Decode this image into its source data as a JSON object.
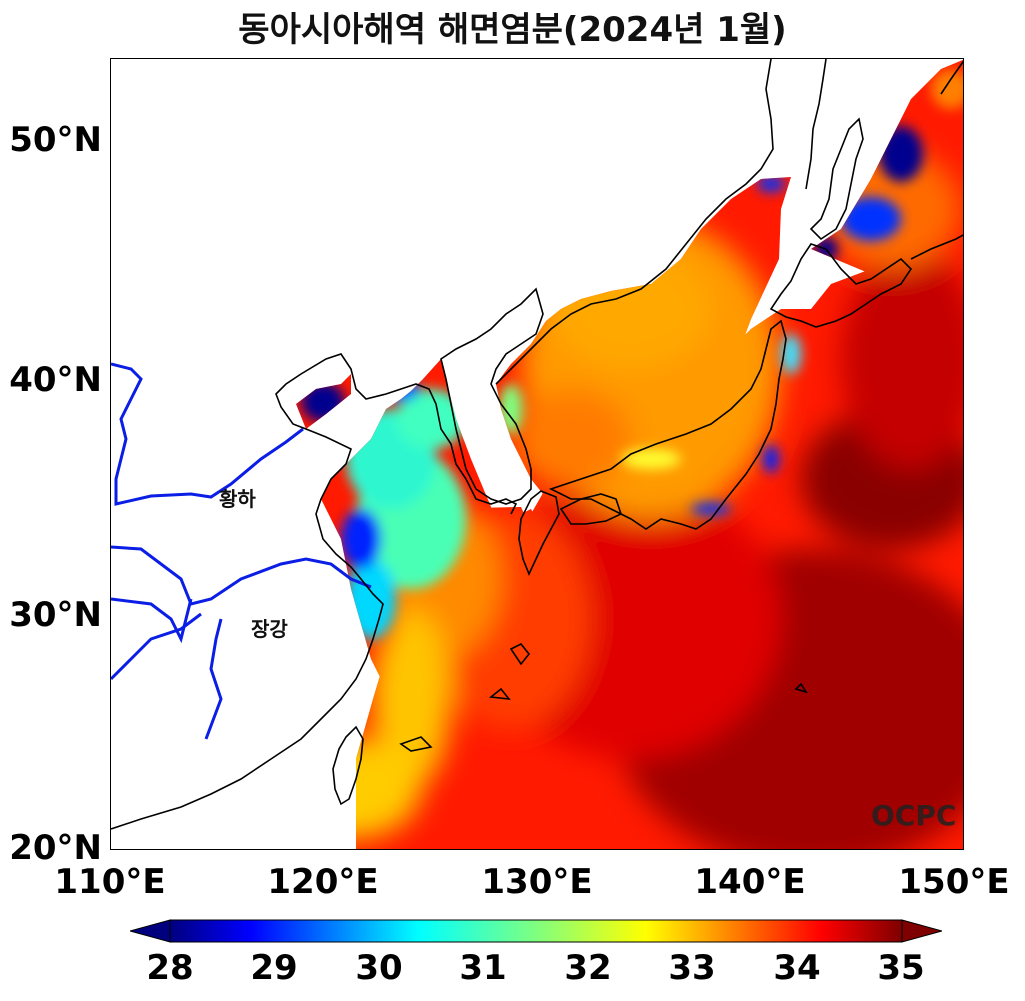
{
  "title": "동아시아해역 해면염분(2024년 1월)",
  "y_ticks": [
    {
      "label": "50°N",
      "lat": 50
    },
    {
      "label": "40°N",
      "lat": 40
    },
    {
      "label": "30°N",
      "lat": 30
    },
    {
      "label": "20°N",
      "lat": 20
    }
  ],
  "x_ticks": [
    {
      "label": "110°E",
      "lon": 110
    },
    {
      "label": "120°E",
      "lon": 120
    },
    {
      "label": "130°E",
      "lon": 130
    },
    {
      "label": "140°E",
      "lon": 140
    },
    {
      "label": "150°E",
      "lon": 150
    }
  ],
  "map": {
    "lon_range": [
      110,
      150
    ],
    "lat_range": [
      20,
      53.5
    ],
    "labels": [
      {
        "text": "황하",
        "lon": 115.0,
        "lat": 34.9
      },
      {
        "text": "장강",
        "lon": 116.5,
        "lat": 29.3
      }
    ],
    "watermark": "OCPC",
    "colors": {
      "river": "#0a1ee6",
      "coast": "#000000",
      "land": "#ffffff"
    }
  },
  "colorbar": {
    "min": 28,
    "max": 35,
    "ticks": [
      "28",
      "29",
      "30",
      "31",
      "32",
      "33",
      "34",
      "35"
    ],
    "colormap": [
      "#00007f",
      "#0000ff",
      "#007fff",
      "#00ffff",
      "#7fff7f",
      "#ffff00",
      "#ff7f00",
      "#ff0000",
      "#7f0000"
    ]
  }
}
